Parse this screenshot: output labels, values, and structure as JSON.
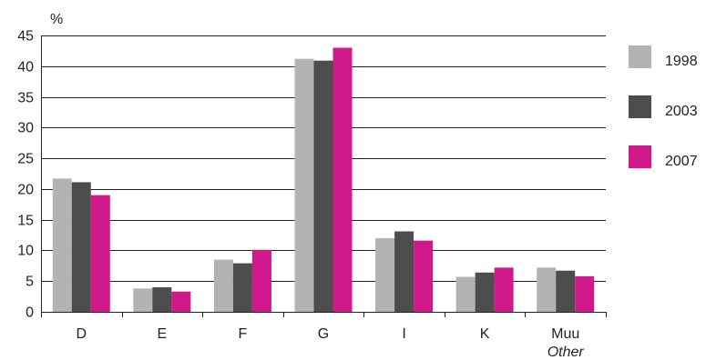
{
  "chart_data": {
    "type": "bar",
    "title": "",
    "ylabel": "%",
    "xlabel": "",
    "ylim": [
      0,
      45
    ],
    "yticks": [
      0,
      5,
      10,
      15,
      20,
      25,
      30,
      35,
      40,
      45
    ],
    "grid": true,
    "legend_position": "right",
    "categories": [
      {
        "label": "D",
        "sublabel": ""
      },
      {
        "label": "E",
        "sublabel": ""
      },
      {
        "label": "F",
        "sublabel": ""
      },
      {
        "label": "G",
        "sublabel": ""
      },
      {
        "label": "I",
        "sublabel": ""
      },
      {
        "label": "K",
        "sublabel": ""
      },
      {
        "label": "Muu",
        "sublabel": "Other"
      }
    ],
    "series": [
      {
        "name": "1998",
        "color": "#b3b3b3",
        "values": [
          21.7,
          3.8,
          8.5,
          41.2,
          12.0,
          5.7,
          7.2
        ]
      },
      {
        "name": "2003",
        "color": "#4d4d4d",
        "values": [
          21.1,
          4.0,
          7.9,
          40.9,
          13.1,
          6.4,
          6.7
        ]
      },
      {
        "name": "2007",
        "color": "#d01a8c",
        "values": [
          19.0,
          3.3,
          10.1,
          43.0,
          11.6,
          7.2,
          5.8
        ]
      }
    ]
  }
}
